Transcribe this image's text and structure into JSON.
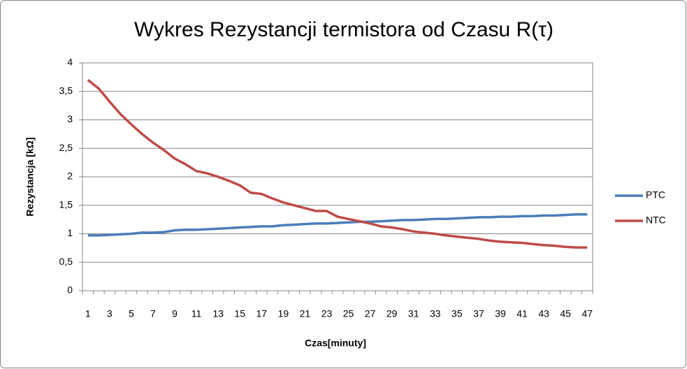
{
  "chart_data": {
    "type": "line",
    "title": "Wykres Rezystancji termistora od Czasu R(τ)",
    "x_label": "Czas[minuty]",
    "y_label": "Rezystancja [kΩ]",
    "categories": [
      1,
      null,
      3,
      null,
      5,
      null,
      7,
      null,
      9,
      null,
      11,
      null,
      13,
      null,
      15,
      null,
      17,
      null,
      19,
      null,
      21,
      null,
      23,
      null,
      25,
      null,
      27,
      null,
      29,
      null,
      31,
      null,
      33,
      null,
      35,
      null,
      37,
      null,
      39,
      null,
      41,
      null,
      43,
      null,
      45,
      null,
      47
    ],
    "ylim": [
      0,
      4
    ],
    "yticks": [
      0,
      {
        "value": 0.5,
        "label": "0,5"
      },
      1,
      {
        "value": 1.5,
        "label": "1,5"
      },
      2,
      {
        "value": 2.5,
        "label": "2,5"
      },
      3,
      {
        "value": 3.5,
        "label": "3,5"
      },
      4
    ],
    "grid": true,
    "legend": "right",
    "series": [
      {
        "name": "PTC",
        "color": "#4a7ebb",
        "values": [
          0.97,
          0.97,
          0.98,
          0.99,
          1.0,
          1.02,
          1.02,
          1.03,
          1.06,
          1.07,
          1.07,
          1.08,
          1.09,
          1.1,
          1.11,
          1.12,
          1.13,
          1.13,
          1.15,
          1.16,
          1.17,
          1.18,
          1.18,
          1.19,
          1.2,
          1.21,
          1.21,
          1.22,
          1.23,
          1.24,
          1.24,
          1.25,
          1.26,
          1.26,
          1.27,
          1.28,
          1.29,
          1.29,
          1.3,
          1.3,
          1.31,
          1.31,
          1.32,
          1.32,
          1.33,
          1.34,
          1.34
        ]
      },
      {
        "name": "NTC",
        "color": "#be4b48",
        "values": [
          3.7,
          3.55,
          3.32,
          3.1,
          2.92,
          2.75,
          2.6,
          2.47,
          2.32,
          2.22,
          2.1,
          2.06,
          2.0,
          1.93,
          1.85,
          1.72,
          1.7,
          1.62,
          1.55,
          1.5,
          1.45,
          1.4,
          1.4,
          1.3,
          1.26,
          1.22,
          1.18,
          1.13,
          1.11,
          1.08,
          1.04,
          1.02,
          1.0,
          0.97,
          0.95,
          0.93,
          0.91,
          0.88,
          0.86,
          0.85,
          0.84,
          0.82,
          0.8,
          0.79,
          0.77,
          0.76,
          0.76
        ]
      }
    ]
  }
}
